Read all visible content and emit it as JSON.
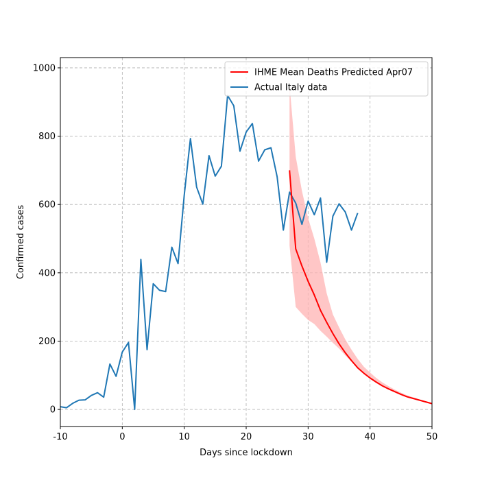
{
  "chart_data": {
    "type": "line",
    "title": "",
    "xlabel": "Days since lockdown",
    "ylabel": "Confirmed cases",
    "xlim": [
      -10,
      50
    ],
    "ylim": [
      -50,
      1030
    ],
    "xticks": [
      -10,
      0,
      10,
      20,
      30,
      40,
      50
    ],
    "yticks": [
      0,
      200,
      400,
      600,
      800,
      1000
    ],
    "grid": true,
    "legend_position": "top-right",
    "colors": {
      "predicted": "#ff0000",
      "band": "#ffb3b3",
      "actual": "#1f77b4",
      "grid": "#b0b0b0"
    },
    "series": [
      {
        "name": "IHME Mean Deaths Predicted Apr07",
        "x": [
          27,
          28,
          29,
          30,
          31,
          32,
          33,
          34,
          35,
          36,
          37,
          38,
          39,
          40,
          41,
          42,
          43,
          44,
          45,
          46,
          47,
          48,
          49,
          50
        ],
        "values": [
          700,
          470,
          420,
          375,
          335,
          290,
          255,
          222,
          192,
          166,
          143,
          122,
          106,
          92,
          80,
          69,
          60,
          52,
          44,
          37,
          32,
          27,
          22,
          17
        ],
        "band_lower": [
          480,
          300,
          280,
          262,
          250,
          230,
          213,
          195,
          178,
          158,
          140,
          120,
          104,
          90,
          78,
          67,
          58,
          50,
          42,
          35,
          30,
          25,
          20,
          15
        ],
        "band_upper": [
          950,
          740,
          640,
          560,
          500,
          430,
          340,
          278,
          240,
          205,
          175,
          148,
          125,
          108,
          92,
          79,
          68,
          58,
          49,
          41,
          35,
          29,
          24,
          19
        ]
      },
      {
        "name": "Actual Italy data",
        "x": [
          -10,
          -9,
          -8,
          -7,
          -6,
          -5,
          -4,
          -3,
          -2,
          -1,
          0,
          1,
          2,
          3,
          4,
          5,
          6,
          7,
          8,
          9,
          10,
          11,
          12,
          13,
          14,
          15,
          16,
          17,
          18,
          19,
          20,
          21,
          22,
          23,
          24,
          25,
          26,
          27,
          28,
          29,
          30,
          31,
          32,
          33,
          34,
          35,
          36,
          37,
          38
        ],
        "values": [
          8,
          5,
          18,
          27,
          28,
          41,
          49,
          36,
          133,
          97,
          168,
          196,
          0,
          439,
          175,
          368,
          349,
          345,
          475,
          427,
          627,
          793,
          651,
          601,
          743,
          683,
          712,
          919,
          889,
          756,
          812,
          837,
          727,
          760,
          766,
          681,
          525,
          636,
          604,
          542,
          610,
          570,
          619,
          431,
          566,
          602,
          578,
          525,
          575
        ]
      }
    ]
  }
}
